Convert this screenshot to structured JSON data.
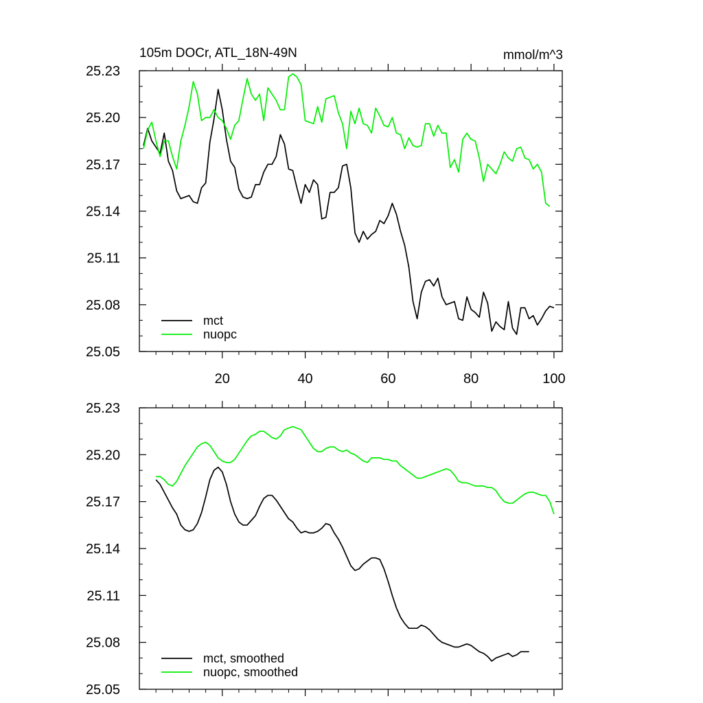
{
  "chart_data": [
    {
      "type": "line",
      "title": "105m DOCr, ATL_18N-49N",
      "units": "mmol/m^3",
      "xlim": [
        0,
        102
      ],
      "ylim": [
        25.05,
        25.23
      ],
      "xticks": [
        20,
        40,
        60,
        80,
        100
      ],
      "xtick_labels": [
        "20",
        "40",
        "60",
        "80",
        "100"
      ],
      "yticks": [
        25.05,
        25.08,
        25.11,
        25.14,
        25.17,
        25.2,
        25.23
      ],
      "ytick_labels": [
        "25.05",
        "25.08",
        "25.11",
        "25.14",
        "25.17",
        "25.20",
        "25.23"
      ],
      "legend_position": "bottom-left",
      "series": [
        {
          "name": "mct",
          "color": "#000000",
          "x_start": 1,
          "values": [
            25.182,
            25.193,
            25.185,
            25.181,
            25.177,
            25.19,
            25.172,
            25.166,
            25.153,
            25.148,
            25.149,
            25.15,
            25.146,
            25.145,
            25.155,
            25.158,
            25.184,
            25.199,
            25.218,
            25.205,
            25.186,
            25.172,
            25.168,
            25.154,
            25.149,
            25.148,
            25.149,
            25.157,
            25.157,
            25.165,
            25.17,
            25.17,
            25.175,
            25.189,
            25.183,
            25.167,
            25.166,
            25.155,
            25.145,
            25.157,
            25.152,
            25.16,
            25.157,
            25.135,
            25.136,
            25.152,
            25.152,
            25.155,
            25.169,
            25.17,
            25.155,
            25.126,
            25.12,
            25.127,
            25.122,
            25.125,
            25.127,
            25.134,
            25.132,
            25.137,
            25.145,
            25.138,
            25.127,
            25.118,
            25.104,
            25.082,
            25.071,
            25.088,
            25.095,
            25.096,
            25.092,
            25.097,
            25.085,
            25.08,
            25.081,
            25.082,
            25.071,
            25.07,
            25.085,
            25.077,
            25.075,
            25.072,
            25.088,
            25.081,
            25.063,
            25.069,
            25.066,
            25.064,
            25.082,
            25.065,
            25.061,
            25.078,
            25.078,
            25.071,
            25.073,
            25.067,
            25.071,
            25.076,
            25.079,
            25.078
          ]
        },
        {
          "name": "nuopc",
          "color": "#00ee00",
          "x_start": 1,
          "values": [
            25.18,
            25.192,
            25.197,
            25.185,
            25.175,
            25.185,
            25.185,
            25.175,
            25.167,
            25.185,
            25.195,
            25.207,
            25.223,
            25.215,
            25.198,
            25.2,
            25.2,
            25.205,
            25.2,
            25.198,
            25.193,
            25.186,
            25.195,
            25.198,
            25.212,
            25.225,
            25.215,
            25.211,
            25.215,
            25.198,
            25.219,
            25.215,
            25.211,
            25.205,
            25.205,
            25.226,
            25.228,
            25.226,
            25.221,
            25.198,
            25.197,
            25.196,
            25.207,
            25.197,
            25.212,
            25.213,
            25.214,
            25.203,
            25.196,
            25.18,
            25.204,
            25.196,
            25.206,
            25.196,
            25.195,
            25.19,
            25.206,
            25.201,
            25.195,
            25.194,
            25.2,
            25.19,
            25.189,
            25.18,
            25.187,
            25.182,
            25.181,
            25.182,
            25.196,
            25.196,
            25.188,
            25.195,
            25.19,
            25.19,
            25.168,
            25.173,
            25.165,
            25.186,
            25.19,
            25.186,
            25.185,
            25.174,
            25.159,
            25.17,
            25.167,
            25.164,
            25.17,
            25.178,
            25.174,
            25.172,
            25.18,
            25.181,
            25.174,
            25.173,
            25.167,
            25.17,
            25.165,
            25.145,
            25.143
          ]
        }
      ]
    },
    {
      "type": "line",
      "title": "",
      "units": "",
      "xlim": [
        0,
        102
      ],
      "ylim": [
        25.05,
        25.23
      ],
      "xticks": [
        20,
        40,
        60,
        80,
        100
      ],
      "xtick_labels": [],
      "yticks": [
        25.05,
        25.08,
        25.11,
        25.14,
        25.17,
        25.2,
        25.23
      ],
      "ytick_labels": [
        "25.05",
        "25.08",
        "25.11",
        "25.14",
        "25.17",
        "25.20",
        "25.23"
      ],
      "legend_position": "bottom-left",
      "series": [
        {
          "name": "mct, smoothed",
          "color": "#000000",
          "x_start": 4,
          "values": [
            25.184,
            25.181,
            25.176,
            25.171,
            25.166,
            25.162,
            25.155,
            25.152,
            25.151,
            25.152,
            25.156,
            25.163,
            25.173,
            25.184,
            25.19,
            25.192,
            25.189,
            25.181,
            25.17,
            25.162,
            25.157,
            25.155,
            25.155,
            25.158,
            25.161,
            25.167,
            25.172,
            25.174,
            25.174,
            25.171,
            25.167,
            25.163,
            25.159,
            25.157,
            25.153,
            25.15,
            25.151,
            25.15,
            25.15,
            25.151,
            25.153,
            25.156,
            25.155,
            25.15,
            25.146,
            25.141,
            25.135,
            25.129,
            25.126,
            25.127,
            25.13,
            25.132,
            25.134,
            25.134,
            25.133,
            25.127,
            25.119,
            25.11,
            25.102,
            25.096,
            25.092,
            25.089,
            25.089,
            25.089,
            25.091,
            25.09,
            25.088,
            25.085,
            25.082,
            25.08,
            25.079,
            25.078,
            25.077,
            25.077,
            25.078,
            25.079,
            25.078,
            25.076,
            25.074,
            25.073,
            25.071,
            25.068,
            25.07,
            25.071,
            25.072,
            25.073,
            25.071,
            25.072,
            25.074,
            25.074,
            25.074
          ]
        },
        {
          "name": "nuopc, smoothed",
          "color": "#00ee00",
          "x_start": 4,
          "values": [
            25.186,
            25.186,
            25.184,
            25.181,
            25.18,
            25.183,
            25.188,
            25.193,
            25.197,
            25.201,
            25.205,
            25.207,
            25.208,
            25.206,
            25.202,
            25.198,
            25.196,
            25.195,
            25.195,
            25.197,
            25.201,
            25.205,
            25.209,
            25.212,
            25.213,
            25.215,
            25.215,
            25.213,
            25.211,
            25.21,
            25.212,
            25.216,
            25.217,
            25.218,
            25.217,
            25.216,
            25.212,
            25.208,
            25.204,
            25.202,
            25.202,
            25.204,
            25.205,
            25.205,
            25.203,
            25.202,
            25.203,
            25.201,
            25.2,
            25.198,
            25.196,
            25.195,
            25.198,
            25.198,
            25.198,
            25.197,
            25.197,
            25.196,
            25.196,
            25.193,
            25.191,
            25.189,
            25.187,
            25.185,
            25.185,
            25.186,
            25.187,
            25.188,
            25.189,
            25.19,
            25.191,
            25.19,
            25.187,
            25.183,
            25.182,
            25.182,
            25.181,
            25.18,
            25.18,
            25.18,
            25.179,
            25.179,
            25.177,
            25.173,
            25.17,
            25.169,
            25.169,
            25.171,
            25.173,
            25.175,
            25.176,
            25.176,
            25.175,
            25.174,
            25.174,
            25.17,
            25.162
          ]
        }
      ]
    }
  ]
}
